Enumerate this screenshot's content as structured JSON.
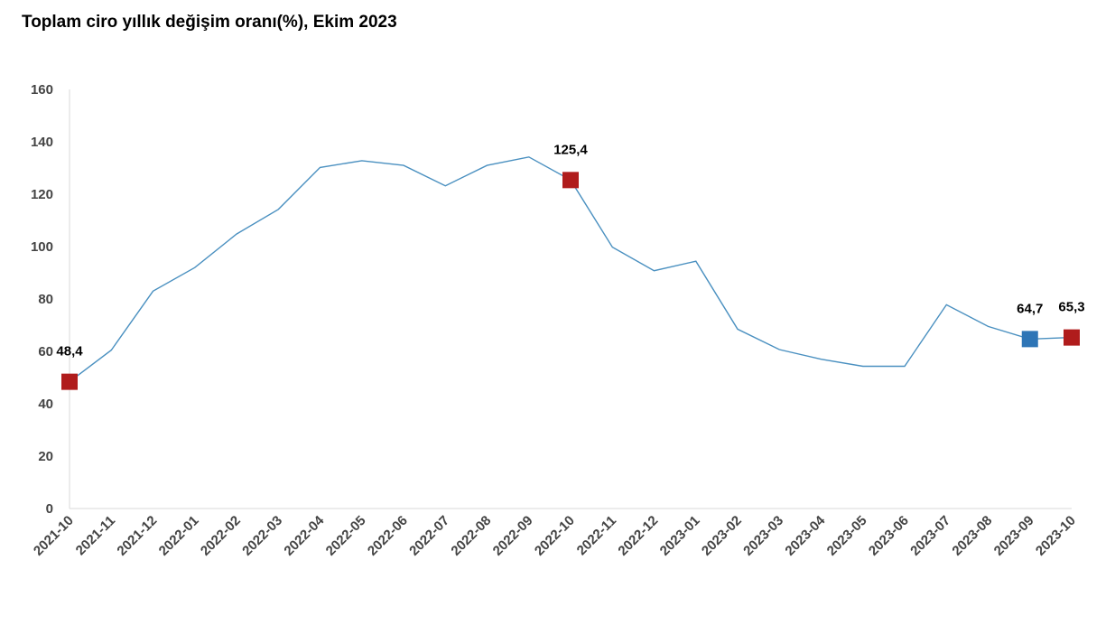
{
  "chart_data": {
    "type": "line",
    "title": "Toplam ciro yıllık değişim oranı(%), Ekim 2023",
    "xlabel": "",
    "ylabel": "",
    "ylim": [
      0,
      160
    ],
    "yticks": [
      0,
      20,
      40,
      60,
      80,
      100,
      120,
      140,
      160
    ],
    "grid": false,
    "legend": "none",
    "categories": [
      "2021-10",
      "2021-11",
      "2021-12",
      "2022-01",
      "2022-02",
      "2022-03",
      "2022-04",
      "2022-05",
      "2022-06",
      "2022-07",
      "2022-08",
      "2022-09",
      "2022-10",
      "2022-11",
      "2022-12",
      "2023-01",
      "2023-02",
      "2023-03",
      "2023-04",
      "2023-05",
      "2023-06",
      "2023-07",
      "2023-08",
      "2023-09",
      "2023-10"
    ],
    "series": [
      {
        "values": [
          48.4,
          60.5,
          83.0,
          92.0,
          104.8,
          114.2,
          130.2,
          132.8,
          131.0,
          123.2,
          131.0,
          134.2,
          125.4,
          99.8,
          90.8,
          94.4,
          68.5,
          60.7,
          57.0,
          54.3,
          54.3,
          77.8,
          69.5,
          64.7,
          65.3
        ],
        "color": "#4a90c0"
      }
    ],
    "highlighted_points": [
      {
        "category": "2021-10",
        "value": 48.4,
        "label": "48,4",
        "color": "#b01c1c"
      },
      {
        "category": "2022-10",
        "value": 125.4,
        "label": "125,4",
        "color": "#b01c1c"
      },
      {
        "category": "2023-09",
        "value": 64.7,
        "label": "64,7",
        "color": "#2e75b6"
      },
      {
        "category": "2023-10",
        "value": 65.3,
        "label": "65,3",
        "color": "#b01c1c"
      }
    ]
  }
}
